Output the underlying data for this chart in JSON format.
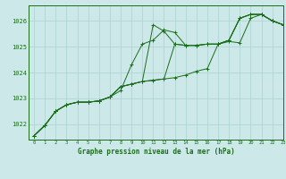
{
  "background_color": "#cce8e8",
  "grid_color": "#b0d4d4",
  "line_color": "#1a6e1a",
  "title": "Graphe pression niveau de la mer (hPa)",
  "xlim": [
    -0.5,
    23
  ],
  "ylim": [
    1021.4,
    1026.6
  ],
  "yticks": [
    1022,
    1023,
    1024,
    1025,
    1026
  ],
  "xticks": [
    0,
    1,
    2,
    3,
    4,
    5,
    6,
    7,
    8,
    9,
    10,
    11,
    12,
    13,
    14,
    15,
    16,
    17,
    18,
    19,
    20,
    21,
    22,
    23
  ],
  "series": [
    [
      1021.55,
      1021.95,
      1022.5,
      1022.75,
      1022.85,
      1022.85,
      1022.9,
      1023.05,
      1023.3,
      1024.3,
      1025.1,
      1025.25,
      1025.65,
      1025.55,
      1025.05,
      1025.05,
      1025.1,
      1025.1,
      1025.25,
      1026.1,
      1026.25,
      1026.25,
      1026.0,
      1025.85
    ],
    [
      1021.55,
      1021.95,
      1022.5,
      1022.75,
      1022.85,
      1022.85,
      1022.9,
      1023.05,
      1023.45,
      1023.55,
      1023.65,
      1025.85,
      1025.6,
      1025.1,
      1025.05,
      1025.05,
      1025.1,
      1025.1,
      1025.25,
      1026.1,
      1026.25,
      1026.25,
      1026.0,
      1025.85
    ],
    [
      1021.55,
      1021.95,
      1022.5,
      1022.75,
      1022.85,
      1022.85,
      1022.9,
      1023.05,
      1023.45,
      1023.55,
      1023.65,
      1023.7,
      1023.75,
      1025.1,
      1025.05,
      1025.05,
      1025.1,
      1025.1,
      1025.25,
      1026.1,
      1026.25,
      1026.25,
      1026.0,
      1025.85
    ],
    [
      1021.55,
      1021.95,
      1022.5,
      1022.75,
      1022.85,
      1022.85,
      1022.9,
      1023.05,
      1023.45,
      1023.55,
      1023.65,
      1023.7,
      1023.75,
      1023.8,
      1023.9,
      1024.05,
      1024.15,
      1025.1,
      1025.2,
      1025.15,
      1026.1,
      1026.25,
      1026.0,
      1025.85
    ]
  ],
  "figsize": [
    3.2,
    2.0
  ],
  "dpi": 100
}
